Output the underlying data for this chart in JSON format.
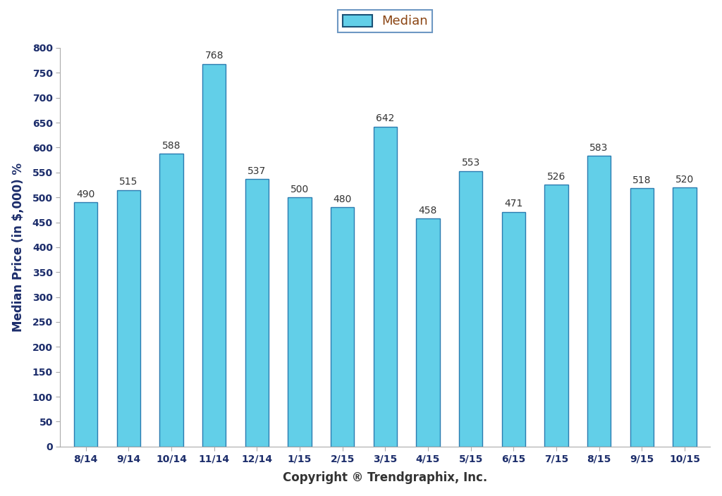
{
  "categories": [
    "8/14",
    "9/14",
    "10/14",
    "11/14",
    "12/14",
    "1/15",
    "2/15",
    "3/15",
    "4/15",
    "5/15",
    "6/15",
    "7/15",
    "8/15",
    "9/15",
    "10/15"
  ],
  "values": [
    490,
    515,
    588,
    768,
    537,
    500,
    480,
    642,
    458,
    553,
    471,
    526,
    583,
    518,
    520
  ],
  "bar_color": "#62CFE8",
  "bar_edge_color": "#2B7BB0",
  "bar_edge_width": 1.0,
  "ylabel": "Median Price (in $,000) %",
  "xlabel": "Copyright ® Trendgraphix, Inc.",
  "ylim": [
    0,
    800
  ],
  "yticks": [
    0,
    50,
    100,
    150,
    200,
    250,
    300,
    350,
    400,
    450,
    500,
    550,
    600,
    650,
    700,
    750,
    800
  ],
  "legend_label": "Median",
  "legend_box_color": "#62CFE8",
  "legend_box_edge_color": "#1A5276",
  "legend_frame_edge_color": "#4A7FB5",
  "legend_text_color": "#8B4513",
  "axis_label_fontsize": 12,
  "tick_fontsize": 10,
  "bar_label_fontsize": 10,
  "ylabel_color": "#1C2D6B",
  "xlabel_color": "#333333",
  "tick_color": "#1C2D6B",
  "bar_label_color": "#333333",
  "background_color": "#FFFFFF",
  "bar_width": 0.55
}
